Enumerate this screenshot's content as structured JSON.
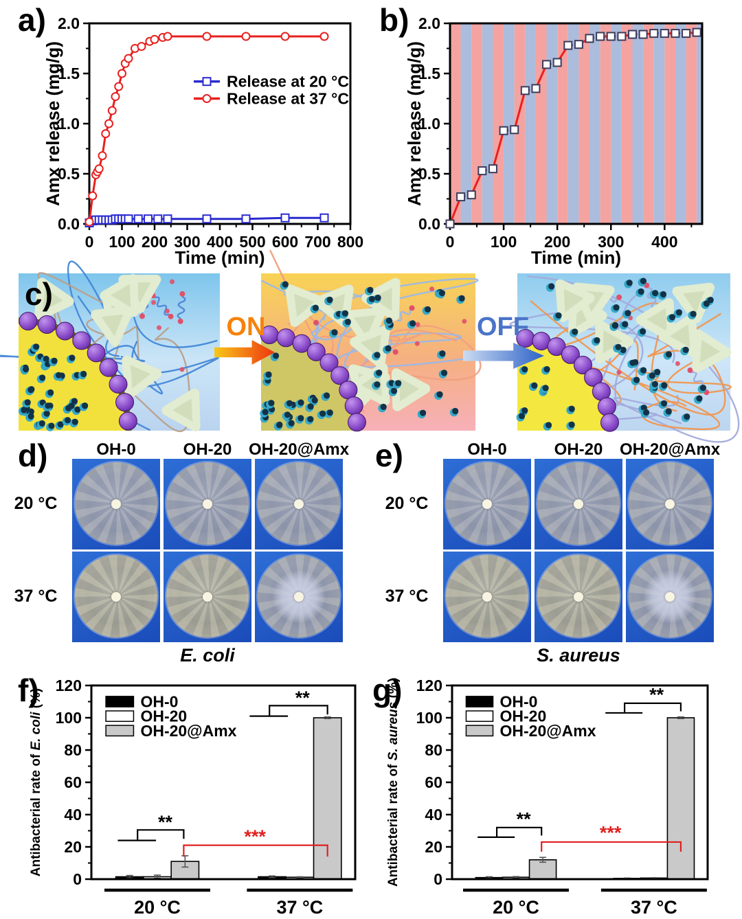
{
  "figure": {
    "background": "#ffffff"
  },
  "panels": {
    "a": {
      "letter": "a)"
    },
    "b": {
      "letter": "b)"
    },
    "c": {
      "letter": "c)",
      "on_label": "ON",
      "off_label": "OFF",
      "on_color": "#f6820c",
      "off_color": "#4a74c8"
    },
    "d": {
      "letter": "d)",
      "columns": [
        "OH-0",
        "OH-20",
        "OH-20@Amx"
      ],
      "rows": [
        "20 °C",
        "37 °C"
      ],
      "caption": "E. coli",
      "dishes": [
        {
          "tint": "cool",
          "halo": false
        },
        {
          "tint": "cool",
          "halo": false
        },
        {
          "tint": "cool",
          "halo": false
        },
        {
          "tint": "warm",
          "halo": false
        },
        {
          "tint": "warm",
          "halo": false
        },
        {
          "tint": "cool",
          "halo": true
        }
      ]
    },
    "e": {
      "letter": "e)",
      "columns": [
        "OH-0",
        "OH-20",
        "OH-20@Amx"
      ],
      "rows": [
        "20 °C",
        "37 °C"
      ],
      "caption": "S. aureus",
      "dishes": [
        {
          "tint": "cool",
          "halo": false
        },
        {
          "tint": "cool",
          "halo": false
        },
        {
          "tint": "cool",
          "halo": false
        },
        {
          "tint": "warm",
          "halo": false
        },
        {
          "tint": "warm",
          "halo": false
        },
        {
          "tint": "cool",
          "halo": true
        }
      ]
    },
    "f": {
      "letter": "f)"
    },
    "g": {
      "letter": "g)"
    }
  },
  "chart_data": [
    {
      "id": "a",
      "type": "line",
      "xlabel": "Time (min)",
      "ylabel": "Amx release (mg/g)",
      "xlim": [
        0,
        800
      ],
      "ylim": [
        0,
        2.0
      ],
      "xticks": [
        0,
        100,
        200,
        300,
        400,
        500,
        600,
        700,
        800
      ],
      "xminor": 50,
      "yticks": [
        0,
        0.5,
        1,
        1.5,
        2
      ],
      "ytick_labels": [
        "0.0",
        "0.5",
        "1.0",
        "1.5",
        "2.0"
      ],
      "yminor": 0.25,
      "series": [
        {
          "name": "Release at 20 °C",
          "color": "#2a2ad0",
          "marker": "square",
          "x": [
            0,
            10,
            20,
            30,
            40,
            50,
            60,
            70,
            80,
            90,
            100,
            110,
            120,
            150,
            180,
            210,
            240,
            360,
            480,
            600,
            720
          ],
          "y": [
            0.01,
            0.03,
            0.04,
            0.04,
            0.04,
            0.04,
            0.04,
            0.04,
            0.05,
            0.05,
            0.05,
            0.05,
            0.05,
            0.05,
            0.05,
            0.05,
            0.05,
            0.05,
            0.05,
            0.06,
            0.06
          ]
        },
        {
          "name": "Release at 37 °C",
          "color": "#e8201e",
          "marker": "circle",
          "x": [
            0,
            10,
            20,
            25,
            30,
            40,
            50,
            60,
            70,
            80,
            90,
            100,
            110,
            120,
            140,
            160,
            185,
            200,
            225,
            240,
            360,
            480,
            600,
            720
          ],
          "y": [
            0.02,
            0.28,
            0.49,
            0.52,
            0.55,
            0.68,
            0.9,
            1.0,
            1.13,
            1.27,
            1.37,
            1.5,
            1.6,
            1.65,
            1.75,
            1.77,
            1.82,
            1.84,
            1.86,
            1.87,
            1.87,
            1.87,
            1.87,
            1.87
          ]
        }
      ],
      "legend": {
        "rows": [
          {
            "x1": 320,
            "x2": 400,
            "y": 1.42
          },
          {
            "x1": 320,
            "x2": 400,
            "y": 1.25
          }
        ]
      }
    },
    {
      "id": "b",
      "type": "line",
      "xlabel": "Time (min)",
      "ylabel": "Amx release (mg/g)",
      "xlim": [
        0,
        470
      ],
      "ylim": [
        0,
        2.0
      ],
      "xticks": [
        0,
        100,
        200,
        300,
        400
      ],
      "xminor": 50,
      "yticks": [
        0,
        0.5,
        1,
        1.5,
        2
      ],
      "ytick_labels": [
        "0.0",
        "0.5",
        "1.0",
        "1.5",
        "2.0"
      ],
      "yminor": 0.25,
      "stripes": {
        "period": 20,
        "colors": [
          "#f4a3a1",
          "#abbcdc"
        ]
      },
      "series": [
        {
          "marker": "square",
          "marker_color": "#3c3c5c",
          "segment_mode": "alternate",
          "rise_color": "#e8201e",
          "hold_color": "#2733cc",
          "x": [
            0,
            20,
            40,
            60,
            80,
            100,
            120,
            140,
            160,
            180,
            200,
            220,
            240,
            260,
            280,
            300,
            320,
            340,
            360,
            380,
            400,
            420,
            440,
            460
          ],
          "y": [
            0.0,
            0.27,
            0.29,
            0.53,
            0.55,
            0.93,
            0.94,
            1.33,
            1.35,
            1.59,
            1.61,
            1.78,
            1.79,
            1.85,
            1.87,
            1.87,
            1.87,
            1.89,
            1.89,
            1.9,
            1.9,
            1.9,
            1.9,
            1.91
          ]
        }
      ]
    },
    {
      "id": "f",
      "type": "bar",
      "ylabel_parts": [
        {
          "t": "Antibacterial rate of ",
          "i": false
        },
        {
          "t": "E. coli",
          "i": true
        },
        {
          "t": " (%)",
          "i": false
        }
      ],
      "ylim": [
        0,
        120
      ],
      "yticks": [
        0,
        20,
        40,
        60,
        80,
        100,
        120
      ],
      "yminor": 10,
      "groups": [
        "20 °C",
        "37 °C"
      ],
      "group_fx": [
        0.25,
        0.79
      ],
      "bar_fw": 0.105,
      "series": [
        {
          "name": "OH-0",
          "fill": "#000000",
          "values": [
            1.5,
            1.5
          ],
          "err": [
            0.8,
            0.5
          ]
        },
        {
          "name": "OH-20",
          "fill": "#ffffff",
          "values": [
            1.5,
            1.2
          ],
          "err": [
            1.0,
            0.3
          ]
        },
        {
          "name": "OH-20@Amx",
          "fill": "#c9c9c9",
          "values": [
            11,
            100
          ],
          "err": [
            3.5,
            0.5
          ]
        }
      ],
      "legend": {
        "fx": 0.055,
        "w_fx": 0.105,
        "rows_y": [
          110,
          101,
          92
        ],
        "h": 6.5
      },
      "sig_lines": [
        {
          "c": "#000000",
          "p": [
            [
              0.1,
              24
            ],
            [
              0.245,
              24
            ]
          ]
        },
        {
          "c": "#000000",
          "p": [
            [
              0.175,
              24
            ],
            [
              0.175,
              30.5
            ],
            [
              0.35,
              30.5
            ],
            [
              0.35,
              25
            ]
          ]
        },
        {
          "c": "#000000",
          "p": [
            [
              0.6,
              101
            ],
            [
              0.745,
              101
            ]
          ]
        },
        {
          "c": "#000000",
          "p": [
            [
              0.675,
              101
            ],
            [
              0.675,
              107.5
            ],
            [
              0.895,
              107.5
            ],
            [
              0.895,
              102
            ]
          ]
        },
        {
          "c": "#e02020",
          "p": [
            [
              0.35,
              14
            ],
            [
              0.35,
              21
            ],
            [
              0.895,
              21
            ],
            [
              0.895,
              14
            ]
          ]
        }
      ],
      "sig_labels": [
        {
          "t": "**",
          "c": "#000000",
          "x": 0.28,
          "y": 31.5
        },
        {
          "t": "**",
          "c": "#000000",
          "x": 0.8,
          "y": 108.5
        },
        {
          "t": "***",
          "c": "#e02020",
          "x": 0.62,
          "y": 22.5
        }
      ]
    },
    {
      "id": "g",
      "type": "bar",
      "ylabel_parts": [
        {
          "t": "Antibacterial rate of ",
          "i": false
        },
        {
          "t": "S. aureus",
          "i": true
        },
        {
          "t": " (%)",
          "i": false
        }
      ],
      "ylim": [
        0,
        120
      ],
      "yticks": [
        0,
        20,
        40,
        60,
        80,
        100,
        120
      ],
      "yminor": 10,
      "groups": [
        "20 °C",
        "37 °C"
      ],
      "group_fx": [
        0.25,
        0.79
      ],
      "bar_fw": 0.105,
      "series": [
        {
          "name": "OH-0",
          "fill": "#000000",
          "values": [
            1.0,
            0.5
          ],
          "err": [
            0.5,
            0.2
          ]
        },
        {
          "name": "OH-20",
          "fill": "#ffffff",
          "values": [
            1.2,
            0.7
          ],
          "err": [
            0.4,
            0.2
          ]
        },
        {
          "name": "OH-20@Amx",
          "fill": "#c9c9c9",
          "values": [
            12,
            100
          ],
          "err": [
            1.5,
            0.5
          ]
        }
      ],
      "legend": {
        "fx": 0.055,
        "w_fx": 0.105,
        "rows_y": [
          110,
          101,
          92
        ],
        "h": 6.5
      },
      "sig_lines": [
        {
          "c": "#000000",
          "p": [
            [
              0.1,
              26
            ],
            [
              0.245,
              26
            ]
          ]
        },
        {
          "c": "#000000",
          "p": [
            [
              0.175,
              26
            ],
            [
              0.175,
              32
            ],
            [
              0.35,
              32
            ],
            [
              0.35,
              27
            ]
          ]
        },
        {
          "c": "#000000",
          "p": [
            [
              0.6,
              103
            ],
            [
              0.745,
              103
            ]
          ]
        },
        {
          "c": "#000000",
          "p": [
            [
              0.675,
              103
            ],
            [
              0.675,
              109
            ],
            [
              0.895,
              109
            ],
            [
              0.895,
              104
            ]
          ]
        },
        {
          "c": "#e02020",
          "p": [
            [
              0.35,
              17
            ],
            [
              0.35,
              23
            ],
            [
              0.895,
              23
            ],
            [
              0.895,
              17
            ]
          ]
        }
      ],
      "sig_labels": [
        {
          "t": "**",
          "c": "#000000",
          "x": 0.28,
          "y": 33.5
        },
        {
          "t": "**",
          "c": "#000000",
          "x": 0.8,
          "y": 110.5
        },
        {
          "t": "***",
          "c": "#e02020",
          "x": 0.62,
          "y": 24.8
        }
      ]
    }
  ]
}
